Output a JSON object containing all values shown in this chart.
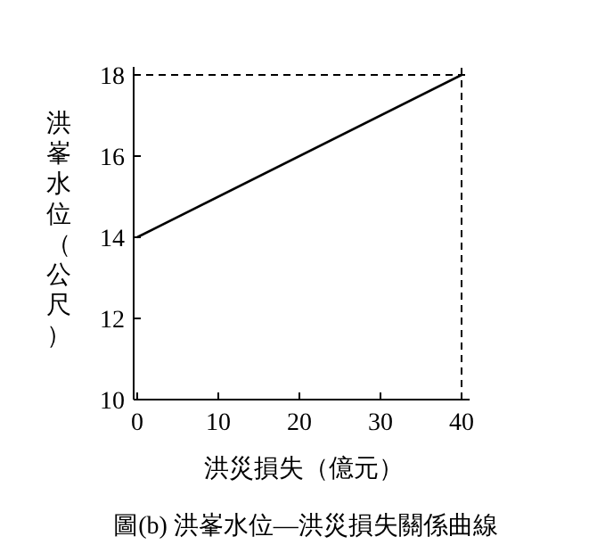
{
  "chart_data": {
    "type": "line",
    "title": "圖(b) 洪峯水位—洪災損失關係曲線",
    "xlabel": "洪災損失（億元）",
    "ylabel": "洪峯水位（公尺）",
    "x": [
      0,
      40
    ],
    "values": [
      14,
      18
    ],
    "color": "#000000",
    "xlim": [
      0,
      41
    ],
    "ylim": [
      10,
      18.2
    ],
    "xticks": [
      0,
      10,
      20,
      30,
      40
    ],
    "yticks": [
      10,
      12,
      14,
      16,
      18
    ],
    "ref_lines": [
      {
        "axis": "x",
        "value": 40,
        "line_style": "dashed",
        "color": "#000000"
      },
      {
        "axis": "y",
        "value": 18,
        "line_style": "dashed",
        "color": "#000000"
      }
    ]
  }
}
